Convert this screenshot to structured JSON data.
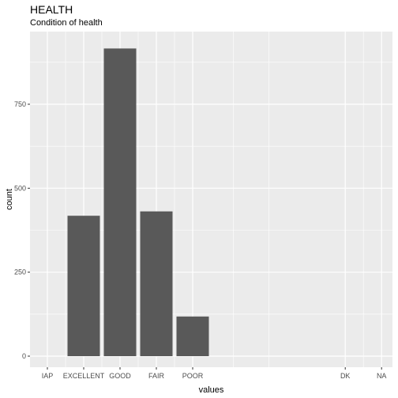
{
  "chart_data": {
    "type": "bar",
    "title": "HEALTH",
    "subtitle": "Condition of health",
    "xlabel": "values",
    "ylabel": "count",
    "categories": [
      "IAP",
      "EXCELLENT",
      "GOOD",
      "FAIR",
      "POOR",
      "DK",
      "NA"
    ],
    "values": [
      0,
      418,
      916,
      431,
      118,
      0,
      0
    ],
    "ylim": [
      0,
      960
    ],
    "yticks": [
      0,
      250,
      500,
      750
    ],
    "grid": true,
    "colors": {
      "panel": "#ebebeb",
      "grid": "#ffffff",
      "bar": "#595959"
    }
  }
}
